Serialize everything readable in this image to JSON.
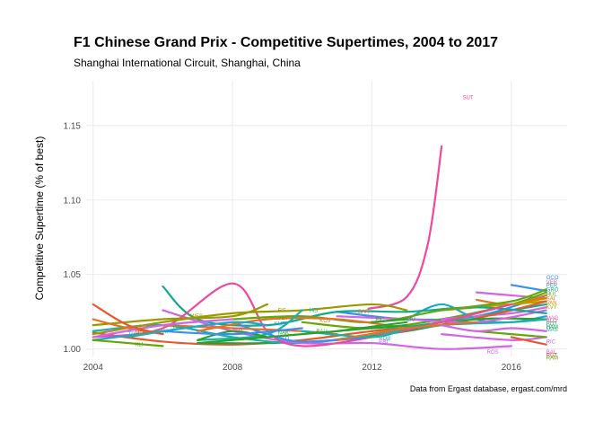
{
  "chart_data": {
    "type": "line",
    "title": "F1 Chinese Grand Prix - Competitive Supertimes, 2004 to 2017",
    "subtitle": "Shanghai International Circuit, Shanghai, China",
    "xlabel": "",
    "ylabel": "Competitive Supertime (% of best)",
    "caption": "Data from Ergast database, ergast.com/mrd",
    "xlim": [
      2003.8,
      2017.6
    ],
    "ylim": [
      0.995,
      1.18
    ],
    "x_ticks": [
      2004,
      2008,
      2012,
      2016
    ],
    "y_ticks": [
      1.0,
      1.05,
      1.1,
      1.15
    ],
    "y_tick_labels": [
      "1.00",
      "1.05",
      "1.10",
      "1.15"
    ],
    "grid": true,
    "legend": "none",
    "series": [
      {
        "name": "SUT",
        "color": "#f0489e",
        "label_at": [
          2014.6,
          1.169
        ],
        "points": [
          [
            2011.9,
            1.027
          ],
          [
            2013.0,
            1.035
          ],
          [
            2013.6,
            1.07
          ],
          [
            2014.0,
            1.136
          ]
        ]
      },
      {
        "name": "OCO",
        "color": "#3a8ff2",
        "label_at": [
          2017.0,
          1.048
        ],
        "points": [
          [
            2016.0,
            1.043
          ],
          [
            2017.0,
            1.039
          ]
        ]
      },
      {
        "name": "VER",
        "color": "#d264e6",
        "label_at": [
          2017.0,
          1.045
        ],
        "points": [
          [
            2015.0,
            1.038
          ],
          [
            2016.0,
            1.036
          ],
          [
            2017.0,
            1.034
          ]
        ]
      },
      {
        "name": "PER",
        "color": "#3a8ff2",
        "label_at": [
          2017.0,
          1.043
        ],
        "points": [
          [
            2011.0,
            1.025
          ],
          [
            2013.0,
            1.02
          ],
          [
            2015.0,
            1.022
          ],
          [
            2017.0,
            1.036
          ]
        ]
      },
      {
        "name": "GRO",
        "color": "#14a88f",
        "label_at": [
          2017.0,
          1.04
        ],
        "points": [
          [
            2012.0,
            1.012
          ],
          [
            2014.0,
            1.018
          ],
          [
            2016.0,
            1.026
          ],
          [
            2017.0,
            1.03
          ]
        ]
      },
      {
        "name": "HUL",
        "color": "#62a80b",
        "label_at": [
          2017.0,
          1.037
        ],
        "points": [
          [
            2010.0,
            1.018
          ],
          [
            2012.0,
            1.014
          ],
          [
            2014.0,
            1.02
          ],
          [
            2016.0,
            1.03
          ],
          [
            2017.0,
            1.038
          ]
        ]
      },
      {
        "name": "SAI",
        "color": "#e0742a",
        "label_at": [
          2017.0,
          1.034
        ],
        "points": [
          [
            2015.0,
            1.033
          ],
          [
            2016.0,
            1.03
          ],
          [
            2017.0,
            1.036
          ]
        ]
      },
      {
        "name": "VAN",
        "color": "#c98c00",
        "label_at": [
          2017.0,
          1.031
        ],
        "points": [
          [
            2016.0,
            1.03
          ],
          [
            2017.0,
            1.034
          ]
        ]
      },
      {
        "name": "KVY",
        "color": "#b5a000",
        "label_at": [
          2017.0,
          1.028
        ],
        "points": [
          [
            2014.0,
            1.026
          ],
          [
            2015.0,
            1.028
          ],
          [
            2016.0,
            1.03
          ],
          [
            2017.0,
            1.032
          ]
        ]
      },
      {
        "name": "MAG",
        "color": "#d264e6",
        "label_at": [
          2017.0,
          1.021
        ],
        "points": [
          [
            2014.0,
            1.02
          ],
          [
            2016.0,
            1.024
          ],
          [
            2017.0,
            1.028
          ]
        ]
      },
      {
        "name": "ALO",
        "color": "#e8582a",
        "label_at": [
          2017.0,
          1.019
        ],
        "points": [
          [
            2004.0,
            1.011
          ],
          [
            2006.0,
            1.005
          ],
          [
            2008.0,
            1.003
          ],
          [
            2010.0,
            1.006
          ],
          [
            2012.0,
            1.012
          ],
          [
            2014.0,
            1.016
          ],
          [
            2016.0,
            1.026
          ],
          [
            2017.0,
            1.032
          ]
        ]
      },
      {
        "name": "BOT",
        "color": "#21a6c8",
        "label_at": [
          2017.0,
          1.017
        ],
        "points": [
          [
            2013.0,
            1.02
          ],
          [
            2014.0,
            1.03
          ],
          [
            2015.0,
            1.02
          ],
          [
            2016.0,
            1.018
          ],
          [
            2017.0,
            1.022
          ]
        ]
      },
      {
        "name": "HAM",
        "color": "#2ca02c",
        "label_at": [
          2017.0,
          1.015
        ],
        "points": [
          [
            2007.0,
            1.004
          ],
          [
            2009.0,
            1.004
          ],
          [
            2011.0,
            1.006
          ],
          [
            2013.0,
            1.012
          ],
          [
            2015.0,
            1.02
          ],
          [
            2017.0,
            1.02
          ]
        ]
      },
      {
        "name": "MAS",
        "color": "#17b3a8",
        "label_at": [
          2017.0,
          1.013
        ],
        "points": [
          [
            2004.0,
            1.012
          ],
          [
            2006.0,
            1.016
          ],
          [
            2008.0,
            1.008
          ],
          [
            2010.0,
            1.004
          ],
          [
            2012.0,
            1.01
          ],
          [
            2014.0,
            1.016
          ],
          [
            2016.0,
            1.018
          ],
          [
            2017.0,
            1.02
          ]
        ]
      },
      {
        "name": "RIC",
        "color": "#d264e6",
        "label_at": [
          2017.0,
          1.005
        ],
        "points": [
          [
            2011.0,
            1.022
          ],
          [
            2013.0,
            1.02
          ],
          [
            2015.0,
            1.018
          ],
          [
            2017.0,
            1.026
          ]
        ]
      },
      {
        "name": "BAL",
        "color": "#d264e6",
        "label_at": [
          2017.0,
          0.998
        ],
        "points": [
          [
            2014.0,
            1.01
          ],
          [
            2016.0,
            1.006
          ],
          [
            2017.0,
            1.008
          ]
        ]
      },
      {
        "name": "RGT",
        "color": "#e8582a",
        "label_at": [
          2017.0,
          0.996
        ],
        "points": [
          [
            2016.0,
            1.008
          ],
          [
            2017.0,
            1.003
          ]
        ]
      },
      {
        "name": "RAM",
        "color": "#62a80b",
        "label_at": [
          2017.0,
          0.994
        ],
        "points": [
          [
            2015.0,
            1.012
          ],
          [
            2017.0,
            1.008
          ]
        ]
      },
      {
        "name": "ROS",
        "color": "#d264e6",
        "label_at": [
          2015.3,
          0.998
        ],
        "points": [
          [
            2006.0,
            1.026
          ],
          [
            2008.0,
            1.012
          ],
          [
            2010.0,
            1.004
          ],
          [
            2012.0,
            1.004
          ],
          [
            2014.0,
            1.0
          ],
          [
            2016.0,
            1.002
          ]
        ]
      },
      {
        "name": "RAI",
        "color": "#14a88f",
        "label_at": [
          2006.3,
          1.015
        ],
        "points": [
          [
            2006.0,
            1.042
          ],
          [
            2007.0,
            1.02
          ],
          [
            2009.0,
            1.016
          ],
          [
            2011.0,
            1.025
          ],
          [
            2013.0,
            1.025
          ],
          [
            2015.0,
            1.028
          ],
          [
            2017.0,
            1.024
          ]
        ]
      },
      {
        "name": "BUT",
        "color": "#f0489e",
        "label_at": [
          2008.0,
          1.013
        ],
        "points": [
          [
            2004.0,
            1.008
          ],
          [
            2006.0,
            1.014
          ],
          [
            2008.0,
            1.044
          ],
          [
            2009.0,
            1.012
          ],
          [
            2010.0,
            1.002
          ],
          [
            2012.0,
            1.008
          ],
          [
            2014.0,
            1.018
          ],
          [
            2016.0,
            1.03
          ]
        ]
      },
      {
        "name": "GLO",
        "color": "#3a8ff2",
        "label_at": [
          2009.3,
          1.007
        ],
        "points": [
          [
            2008.0,
            1.018
          ],
          [
            2009.0,
            1.01
          ],
          [
            2010.0,
            1.005
          ],
          [
            2012.0,
            1.008
          ]
        ]
      },
      {
        "name": "FIS",
        "color": "#9a9a00",
        "label_at": [
          2009.3,
          1.026
        ],
        "points": [
          [
            2004.0,
            1.016
          ],
          [
            2006.0,
            1.02
          ],
          [
            2008.0,
            1.022
          ],
          [
            2009.0,
            1.03
          ]
        ]
      },
      {
        "name": "VET",
        "color": "#62a80b",
        "label_at": [
          2009.3,
          1.021
        ],
        "points": [
          [
            2008.0,
            1.02
          ],
          [
            2010.0,
            1.022
          ],
          [
            2012.0,
            1.018
          ],
          [
            2014.0,
            1.026
          ],
          [
            2016.0,
            1.032
          ],
          [
            2017.0,
            1.04
          ]
        ]
      },
      {
        "name": "WEB",
        "color": "#9a9a00",
        "label_at": [
          2006.8,
          1.022
        ],
        "points": [
          [
            2004.0,
            1.01
          ],
          [
            2006.0,
            1.018
          ],
          [
            2008.0,
            1.024
          ],
          [
            2010.0,
            1.026
          ],
          [
            2012.0,
            1.03
          ],
          [
            2013.0,
            1.026
          ]
        ]
      },
      {
        "name": "KOV",
        "color": "#e0742a",
        "label_at": [
          2010.5,
          1.019
        ],
        "points": [
          [
            2007.0,
            1.012
          ],
          [
            2009.0,
            1.02
          ],
          [
            2011.0,
            1.02
          ],
          [
            2013.0,
            1.014
          ]
        ]
      },
      {
        "name": "HEI",
        "color": "#17b3a8",
        "label_at": [
          2010.2,
          1.026
        ],
        "points": [
          [
            2007.0,
            1.006
          ],
          [
            2009.0,
            1.01
          ],
          [
            2010.0,
            1.026
          ]
        ]
      },
      {
        "name": "BAR",
        "color": "#e0742a",
        "label_at": [
          2011.6,
          1.025
        ],
        "points": [
          [
            2006.0,
            1.016
          ],
          [
            2008.0,
            1.014
          ],
          [
            2010.0,
            1.012
          ],
          [
            2011.0,
            1.01
          ]
        ]
      },
      {
        "name": "ROB",
        "color": "#17b3a8",
        "label_at": [
          2012.2,
          1.007
        ],
        "points": [
          [
            2010.0,
            1.012
          ],
          [
            2012.0,
            1.008
          ],
          [
            2013.0,
            1.014
          ]
        ]
      },
      {
        "name": "NAK",
        "color": "#2ca02c",
        "label_at": [
          2009.3,
          1.011
        ],
        "points": [
          [
            2007.0,
            1.006
          ],
          [
            2008.0,
            1.012
          ],
          [
            2009.0,
            1.008
          ]
        ]
      },
      {
        "name": "PIZ",
        "color": "#e0742a",
        "label_at": [
          2005.3,
          1.015
        ],
        "points": [
          [
            2004.0,
            1.02
          ],
          [
            2005.0,
            1.014
          ],
          [
            2006.0,
            1.01
          ]
        ]
      },
      {
        "name": "TRU",
        "color": "#21a6c8",
        "label_at": [
          2005.0,
          1.01
        ],
        "points": [
          [
            2004.0,
            1.006
          ],
          [
            2006.0,
            1.012
          ],
          [
            2008.0,
            1.018
          ],
          [
            2009.0,
            1.016
          ]
        ]
      },
      {
        "name": "SAT",
        "color": "#d264e6",
        "label_at": [
          2004.3,
          1.012
        ],
        "points": [
          [
            2004.0,
            1.008
          ],
          [
            2006.0,
            1.016
          ],
          [
            2008.0,
            1.02
          ]
        ]
      },
      {
        "name": "MON",
        "color": "#e8582a",
        "label_at": [
          2005.2,
          1.011
        ],
        "points": [
          [
            2004.0,
            1.03
          ],
          [
            2005.0,
            1.016
          ],
          [
            2006.0,
            1.01
          ]
        ]
      },
      {
        "name": "KLI",
        "color": "#62a80b",
        "label_at": [
          2005.2,
          1.003
        ],
        "points": [
          [
            2004.0,
            1.006
          ],
          [
            2005.0,
            1.004
          ],
          [
            2006.0,
            1.002
          ]
        ]
      },
      {
        "name": "BAU",
        "color": "#2ca02c",
        "label_at": [
          2010.4,
          1.012
        ],
        "points": [
          [
            2007.0,
            1.004
          ],
          [
            2009.0,
            1.008
          ],
          [
            2011.0,
            1.012
          ],
          [
            2013.0,
            1.016
          ]
        ]
      },
      {
        "name": "DIR",
        "color": "#e0742a",
        "label_at": [
          2013.6,
          1.016
        ],
        "points": [
          [
            2011.0,
            1.006
          ],
          [
            2013.0,
            1.014
          ],
          [
            2015.0,
            1.018
          ]
        ]
      },
      {
        "name": "ERI",
        "color": "#d264e6",
        "label_at": [
          2012.2,
          1.005
        ],
        "points": [
          [
            2014.0,
            1.016
          ],
          [
            2015.0,
            1.012
          ],
          [
            2016.0,
            1.014
          ],
          [
            2017.0,
            1.012
          ]
        ]
      },
      {
        "name": "KUB",
        "color": "#3a8ff2",
        "label_at": [
          2009.2,
          1.017
        ],
        "points": [
          [
            2006.0,
            1.012
          ],
          [
            2008.0,
            1.01
          ],
          [
            2010.0,
            1.014
          ]
        ]
      },
      {
        "name": "LIU",
        "color": "#2ca02c",
        "label_at": [
          2013.0,
          1.02
        ],
        "points": [
          [
            2011.0,
            1.012
          ],
          [
            2013.0,
            1.018
          ]
        ]
      },
      {
        "name": "PIC",
        "color": "#2ca02c",
        "label_at": [
          2012.1,
          1.02
        ],
        "points": [
          [
            2012.0,
            1.018
          ],
          [
            2013.0,
            1.02
          ]
        ]
      },
      {
        "name": "DAM",
        "color": "#17b3a8",
        "label_at": [
          2005.8,
          1.012
        ],
        "points": [
          [
            2005.0,
            1.008
          ],
          [
            2006.0,
            1.012
          ]
        ]
      }
    ]
  }
}
